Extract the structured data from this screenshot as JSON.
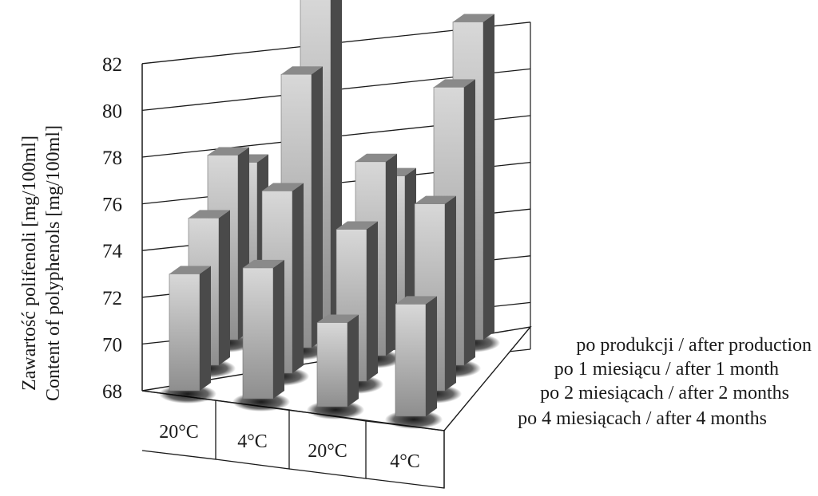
{
  "chart_data": {
    "type": "bar3d",
    "ylabel_lines": [
      "Zawartość polifenoli [mg/100ml]",
      "Content of polyphenols [mg/100ml]"
    ],
    "yticks": [
      68,
      70,
      72,
      74,
      76,
      78,
      80,
      82
    ],
    "ylim": [
      68,
      82
    ],
    "categories": [
      "20°C",
      "4°C",
      "20°C",
      "4°C"
    ],
    "series": [
      {
        "name": "po produkcji / after production",
        "values": [
          74.5,
          82.0,
          74.6,
          81.6
        ]
      },
      {
        "name": "po 1 miesiącu / after 1 month",
        "values": [
          75.9,
          79.7,
          76.3,
          79.9
        ]
      },
      {
        "name": "po 2 miesiącach / after 2 months",
        "values": [
          74.3,
          75.8,
          74.5,
          76.0
        ]
      },
      {
        "name": "po 4 miesiącach / after 4 months",
        "values": [
          73.0,
          73.6,
          71.6,
          72.8
        ]
      }
    ],
    "colors": {
      "bar_front": "#b8b8b8",
      "bar_side": "#4a4a4a",
      "bar_top": "#8a8a8a",
      "grid": "#1a1a1a"
    },
    "grid": true
  }
}
